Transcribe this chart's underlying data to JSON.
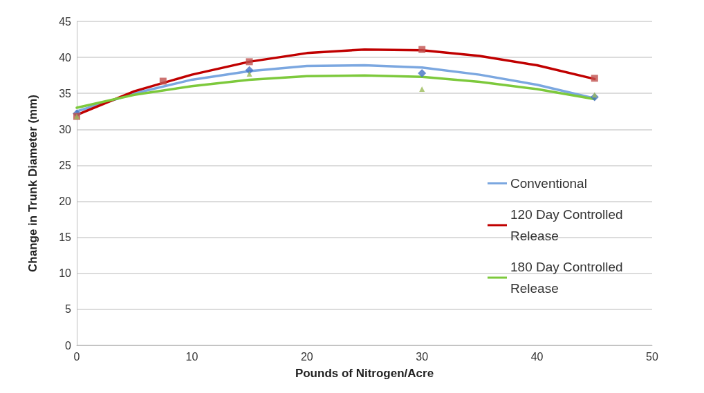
{
  "chart_data": {
    "type": "scatter",
    "xlabel": "Pounds of Nitrogen/Acre",
    "ylabel": "Change in Trunk Diameter (mm)",
    "xlim": [
      0,
      50
    ],
    "xticks": [
      0,
      10,
      20,
      30,
      40,
      50
    ],
    "ylim": [
      0,
      45
    ],
    "yticks": [
      0,
      5,
      10,
      15,
      20,
      25,
      30,
      35,
      40,
      45
    ],
    "grid": "y",
    "legend": "right",
    "series": [
      {
        "marker": "diamond",
        "color": "#4472c4",
        "x": [
          0,
          15,
          30,
          45
        ],
        "values": [
          32.2,
          38.2,
          37.8,
          34.5
        ]
      },
      {
        "marker": "square",
        "color": "#c0504d",
        "x": [
          0,
          7.5,
          15,
          30,
          45
        ],
        "values": [
          31.8,
          36.7,
          39.4,
          41.1,
          37.1
        ]
      },
      {
        "marker": "triangle",
        "color": "#9bbb59",
        "x": [
          0,
          15,
          30,
          45
        ],
        "values": [
          31.8,
          37.7,
          35.6,
          34.8
        ]
      },
      {
        "type": "line",
        "name": "Conventional",
        "color": "#7ba7e0",
        "marker": "none",
        "x": [
          0,
          5,
          10,
          15,
          20,
          25,
          30,
          35,
          40,
          45
        ],
        "values": [
          32.5,
          35.0,
          36.9,
          38.1,
          38.8,
          38.9,
          38.6,
          37.6,
          36.2,
          34.3
        ]
      },
      {
        "type": "line",
        "name": "120 Day Controlled Release",
        "color": "#c00000",
        "marker": "none",
        "x": [
          0,
          5,
          10,
          15,
          20,
          25,
          30,
          35,
          40,
          45
        ],
        "values": [
          32.0,
          35.3,
          37.6,
          39.4,
          40.6,
          41.1,
          41.0,
          40.2,
          38.9,
          37.0
        ]
      },
      {
        "type": "line",
        "name": "180 Day Controlled Release",
        "color": "#7dc93c",
        "marker": "none",
        "x": [
          0,
          5,
          10,
          15,
          20,
          25,
          30,
          35,
          40,
          45
        ],
        "values": [
          33.0,
          34.8,
          36.0,
          36.9,
          37.4,
          37.5,
          37.3,
          36.6,
          35.6,
          34.2
        ]
      }
    ]
  }
}
